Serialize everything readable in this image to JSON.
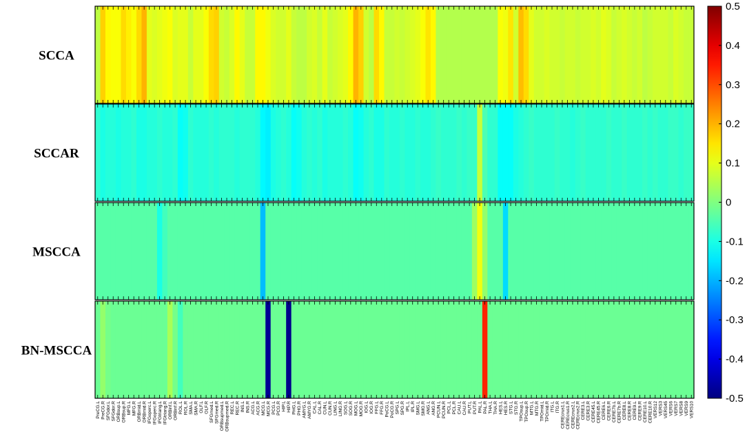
{
  "chart_data": {
    "type": "heatmap",
    "rows": [
      "SCCA",
      "SCCAR",
      "MSCCA",
      "BN-MSCCA"
    ],
    "regions": [
      "PreCG.L",
      "PreCG.R",
      "SFGdor.L",
      "SFGdor.R",
      "ORBsup.L",
      "ORBsup.R",
      "MFG.L",
      "MFG.R",
      "ORBmid.L",
      "ORBmid.R",
      "IFGoperc.L",
      "IFGoperc.R",
      "IFGtriang.L",
      "IFGtriang.R",
      "ORBinf.L",
      "ORBinf.R",
      "ROL.L",
      "ROL.R",
      "SMA.L",
      "SMA.R",
      "OLF.L",
      "OLF.R",
      "SFGmed.L",
      "SFGmed.R",
      "ORBsupmed.L",
      "ORBsupmed.R",
      "REC.L",
      "REC.R",
      "INS.L",
      "INS.R",
      "ACG.L",
      "ACG.R",
      "MCG.L",
      "MCG.R",
      "PCG.L",
      "PCG.R",
      "HIP.L",
      "HIP.R",
      "PHG.L",
      "PHG.R",
      "AMYG.L",
      "AMYG.R",
      "CAL.L",
      "CAL.R",
      "CUN.L",
      "CUN.R",
      "LING.L",
      "LING.R",
      "SOG.L",
      "SOG.R",
      "MOG.L",
      "MOG.R",
      "IOG.L",
      "IOG.R",
      "FFG.L",
      "FFG.R",
      "PoCG.L",
      "PoCG.R",
      "SPG.L",
      "SPG.R",
      "IPL.L",
      "IPL.R",
      "SMG.L",
      "SMG.R",
      "ANG.L",
      "ANG.R",
      "PCUN.L",
      "PCUN.R",
      "PCL.L",
      "PCL.R",
      "CAU.L",
      "CAU.R",
      "PUT.L",
      "PUT.R",
      "PAL.L",
      "PAL.R",
      "THA.L",
      "THA.R",
      "HES.L",
      "HES.R",
      "STG.L",
      "STG.R",
      "TPOsup.L",
      "TPOsup.R",
      "MTG.L",
      "MTG.R",
      "TPOmid.L",
      "TPOmid.R",
      "ITG.L",
      "ITG.R",
      "CEREcrus1.L",
      "CEREcrus1.R",
      "CEREcrus2.L",
      "CEREcrus2.R",
      "CERE3.L",
      "CERE3.R",
      "CERE45.L",
      "CERE45.R",
      "CERE6.L",
      "CERE6.R",
      "CERE7b.L",
      "CERE7b.R",
      "CERE8.L",
      "CERE8.R",
      "CERE9.L",
      "CERE9.R",
      "CERE10.L",
      "CERE10.R",
      "VERS12",
      "VERS3",
      "VERS45",
      "VERS6",
      "VERS7",
      "VERS8",
      "VERS9",
      "VERS10"
    ],
    "values": {
      "SCCA": [
        0.06,
        0.17,
        0.13,
        0.12,
        0.12,
        0.16,
        0.14,
        0.12,
        0.16,
        0.2,
        0.1,
        0.09,
        0.1,
        0.11,
        0.12,
        0.09,
        0.1,
        0.1,
        0.07,
        0.1,
        0.1,
        0.12,
        0.16,
        0.17,
        0.08,
        0.07,
        0.09,
        0.13,
        0.1,
        0.07,
        0.07,
        0.13,
        0.13,
        0.11,
        0.09,
        0.08,
        0.08,
        0.1,
        0.07,
        0.06,
        0.06,
        0.08,
        0.09,
        0.07,
        0.1,
        0.07,
        0.08,
        0.09,
        0.1,
        0.13,
        0.2,
        0.17,
        0.08,
        0.06,
        0.16,
        0.13,
        0.07,
        0.07,
        0.08,
        0.07,
        0.08,
        0.09,
        0.1,
        0.12,
        0.15,
        0.13,
        0.05,
        0.05,
        0.05,
        0.05,
        0.05,
        0.05,
        0.05,
        0.05,
        0.05,
        0.05,
        0.05,
        0.05,
        0.12,
        0.11,
        0.15,
        0.08,
        0.19,
        0.16,
        0.1,
        0.08,
        0.08,
        0.09,
        0.08,
        0.08,
        0.07,
        0.08,
        0.08,
        0.07,
        0.08,
        0.08,
        0.09,
        0.08,
        0.1,
        0.09,
        0.07,
        0.08,
        0.09,
        0.08,
        0.07,
        0.08,
        0.06,
        0.07,
        0.08,
        0.08,
        0.08,
        0.07,
        0.09,
        0.08,
        0.07,
        0.07
      ],
      "SCCAR": [
        -0.08,
        -0.1,
        -0.09,
        -0.09,
        -0.1,
        -0.09,
        -0.09,
        -0.08,
        -0.1,
        -0.1,
        -0.09,
        -0.09,
        -0.08,
        -0.09,
        -0.09,
        -0.08,
        -0.12,
        -0.11,
        -0.08,
        -0.09,
        -0.09,
        -0.09,
        -0.08,
        -0.09,
        -0.08,
        -0.08,
        -0.08,
        -0.09,
        -0.08,
        -0.08,
        -0.08,
        -0.09,
        -0.13,
        -0.14,
        -0.1,
        -0.09,
        -0.08,
        -0.09,
        -0.12,
        -0.11,
        -0.09,
        -0.08,
        -0.09,
        -0.08,
        -0.1,
        -0.09,
        -0.09,
        -0.09,
        -0.08,
        -0.09,
        -0.12,
        -0.11,
        -0.09,
        -0.08,
        -0.1,
        -0.1,
        -0.08,
        -0.09,
        -0.09,
        -0.08,
        -0.09,
        -0.09,
        -0.08,
        -0.09,
        -0.09,
        -0.08,
        -0.07,
        -0.08,
        -0.08,
        -0.08,
        -0.07,
        -0.08,
        -0.07,
        -0.07,
        0.07,
        -0.05,
        -0.08,
        -0.08,
        -0.12,
        -0.12,
        -0.12,
        -0.1,
        -0.09,
        -0.08,
        -0.07,
        -0.08,
        -0.08,
        -0.08,
        -0.08,
        -0.07,
        -0.08,
        -0.08,
        -0.09,
        -0.08,
        -0.07,
        -0.08,
        -0.08,
        -0.08,
        -0.08,
        -0.07,
        -0.08,
        -0.08,
        -0.07,
        -0.08,
        -0.08,
        -0.08,
        -0.07,
        -0.08,
        -0.07,
        -0.08,
        -0.08,
        -0.07,
        -0.07,
        -0.08,
        -0.07,
        -0.07
      ],
      "MSCCA": [
        -0.04,
        -0.04,
        -0.04,
        -0.04,
        -0.04,
        -0.04,
        -0.04,
        -0.04,
        -0.04,
        -0.04,
        -0.04,
        -0.04,
        -0.1,
        -0.06,
        -0.04,
        -0.04,
        -0.04,
        -0.04,
        -0.04,
        -0.04,
        -0.04,
        -0.04,
        -0.04,
        -0.04,
        -0.04,
        -0.04,
        -0.04,
        -0.04,
        -0.04,
        -0.04,
        -0.04,
        -0.04,
        -0.19,
        -0.04,
        -0.04,
        -0.04,
        -0.04,
        -0.04,
        -0.04,
        -0.04,
        -0.04,
        -0.04,
        -0.04,
        -0.04,
        -0.04,
        -0.04,
        -0.04,
        -0.04,
        -0.04,
        -0.04,
        -0.04,
        -0.04,
        -0.04,
        -0.04,
        -0.04,
        -0.04,
        -0.04,
        -0.04,
        -0.04,
        -0.04,
        -0.04,
        -0.04,
        -0.04,
        -0.04,
        -0.04,
        -0.04,
        -0.04,
        -0.04,
        -0.04,
        -0.04,
        -0.04,
        -0.04,
        -0.04,
        0.03,
        0.11,
        0.02,
        -0.04,
        -0.04,
        -0.04,
        -0.16,
        -0.04,
        -0.04,
        -0.04,
        -0.04,
        -0.04,
        -0.04,
        -0.04,
        -0.04,
        -0.04,
        -0.04,
        -0.04,
        -0.04,
        -0.04,
        -0.04,
        -0.04,
        -0.04,
        -0.04,
        -0.04,
        -0.04,
        -0.04,
        -0.04,
        -0.04,
        -0.04,
        -0.04,
        -0.04,
        -0.04,
        -0.04,
        -0.04,
        -0.04,
        -0.04,
        -0.04,
        -0.04,
        -0.04,
        -0.04,
        -0.04,
        -0.04
      ],
      "BN-MSCCA": [
        -0.02,
        0.02,
        -0.01,
        -0.02,
        -0.02,
        -0.02,
        -0.02,
        -0.02,
        -0.02,
        -0.02,
        -0.02,
        -0.02,
        -0.02,
        -0.02,
        0.04,
        -0.01,
        -0.06,
        -0.02,
        -0.02,
        -0.02,
        -0.02,
        -0.02,
        -0.02,
        -0.02,
        -0.02,
        -0.02,
        -0.02,
        -0.02,
        -0.02,
        -0.02,
        -0.02,
        -0.02,
        -0.02,
        -0.48,
        -0.02,
        -0.02,
        -0.02,
        -0.49,
        -0.02,
        -0.02,
        -0.02,
        -0.02,
        -0.02,
        -0.02,
        -0.02,
        -0.02,
        -0.02,
        -0.02,
        -0.02,
        -0.02,
        -0.02,
        -0.02,
        -0.02,
        -0.02,
        -0.02,
        -0.02,
        -0.02,
        -0.02,
        -0.02,
        -0.02,
        -0.02,
        -0.02,
        -0.02,
        -0.02,
        -0.02,
        -0.02,
        -0.02,
        -0.02,
        -0.02,
        -0.02,
        -0.02,
        -0.02,
        -0.02,
        -0.02,
        -0.02,
        0.34,
        -0.02,
        -0.02,
        -0.02,
        -0.02,
        -0.02,
        -0.02,
        -0.02,
        -0.02,
        -0.02,
        -0.02,
        -0.02,
        -0.02,
        -0.02,
        -0.02,
        -0.02,
        -0.02,
        -0.02,
        -0.02,
        -0.02,
        -0.02,
        -0.02,
        -0.02,
        -0.02,
        -0.02,
        -0.02,
        -0.02,
        -0.02,
        -0.02,
        -0.02,
        -0.02,
        -0.02,
        -0.02,
        -0.02,
        -0.02,
        -0.02,
        -0.02,
        -0.02,
        -0.02,
        -0.02,
        -0.02
      ]
    },
    "colorbar": {
      "colormap": "jet",
      "range": [
        -0.5,
        0.5
      ],
      "ticks": [
        0.5,
        0.4,
        0.3,
        0.2,
        0.1,
        0,
        -0.1,
        -0.2,
        -0.3,
        -0.4,
        -0.5
      ],
      "tick_labels": [
        "0.5",
        "0.4",
        "0.3",
        "0.2",
        "0.1",
        "0",
        "-0.1",
        "-0.2",
        "-0.3",
        "-0.4",
        "-0.5"
      ]
    },
    "title": "",
    "xlabel": "",
    "ylabel": ""
  }
}
